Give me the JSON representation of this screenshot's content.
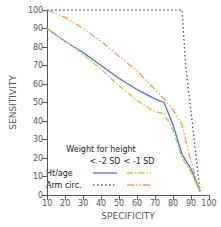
{
  "chart_data": {
    "type": "line",
    "xlabel": "SPECIFICITY",
    "ylabel": "SENSITIVITY",
    "xlim": [
      10,
      100
    ],
    "ylim": [
      0,
      100
    ],
    "xticks": [
      10,
      20,
      30,
      40,
      50,
      60,
      70,
      80,
      90,
      100
    ],
    "yticks": [
      0,
      10,
      20,
      30,
      40,
      50,
      60,
      70,
      80,
      90,
      100
    ],
    "grid": false,
    "legend_table": {
      "title": "Weight for height",
      "columns": [
        "< -2 SD",
        "< -1 SD"
      ],
      "rows": [
        "Ht/age",
        "Arm circ."
      ]
    },
    "series": [
      {
        "x": [
          10,
          20,
          25,
          30,
          40,
          50,
          60,
          70,
          75,
          80,
          85,
          90,
          95
        ],
        "values": [
          90,
          83,
          80,
          77,
          70,
          63,
          57,
          52,
          50,
          38,
          22,
          14,
          2
        ],
        "line_style": "solid"
      },
      {
        "x": [
          10,
          20,
          25,
          30,
          40,
          50,
          60,
          65,
          70,
          75,
          80,
          85,
          90,
          95
        ],
        "values": [
          90,
          83,
          80,
          76,
          68,
          59,
          51,
          48,
          45,
          44,
          35,
          20,
          12,
          2
        ],
        "line_style": "dashdot"
      },
      {
        "x": [
          10,
          20,
          30,
          40,
          50,
          60,
          70,
          75,
          80,
          85,
          87,
          90,
          95
        ],
        "values": [
          100,
          100,
          100,
          100,
          100,
          100,
          100,
          100,
          100,
          100,
          70,
          45,
          2
        ],
        "line_style": "dotted"
      },
      {
        "x": [
          10,
          20,
          30,
          40,
          50,
          60,
          70,
          75,
          80,
          85,
          87,
          90,
          95
        ],
        "values": [
          100,
          96,
          90,
          83,
          75,
          67,
          57,
          52,
          46,
          38,
          30,
          18,
          2
        ],
        "line_style": "dashdotdot"
      }
    ]
  }
}
